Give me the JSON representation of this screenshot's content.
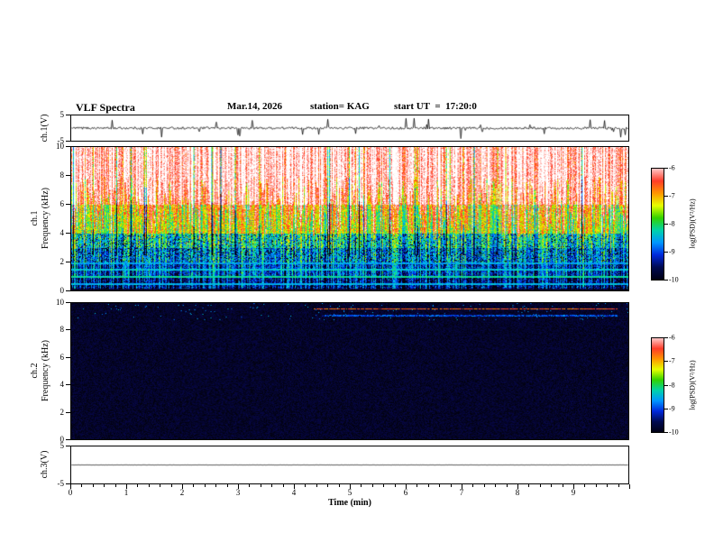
{
  "header": {
    "title": "VLF Spectra",
    "date": "Mar.14, 2026",
    "station": "station= KAG",
    "start_ut": "start UT  =  17:20:0"
  },
  "xaxis": {
    "label": "Time (min)",
    "lim": [
      0,
      10
    ],
    "ticks": [
      0,
      1,
      2,
      3,
      4,
      5,
      6,
      7,
      8,
      9
    ],
    "minor_step": 0.2
  },
  "colorbar": {
    "label": "log(PSD)(V²/Hz)",
    "ticks": [
      -6,
      -7,
      -8,
      -9,
      -10
    ],
    "lim": [
      -6,
      -10
    ],
    "colors_top_to_bottom": [
      "#ffc8c8",
      "#ff3c28",
      "#ff9600",
      "#e6ff00",
      "#32d200",
      "#00d2aa",
      "#0096ff",
      "#0028dc",
      "#000a50",
      "#000014"
    ]
  },
  "chart_data": [
    {
      "type": "line",
      "name": "ch1-waveform",
      "ylabel": "ch.1(V)",
      "ylim": [
        -5,
        5
      ],
      "yticks": [
        5,
        -5
      ],
      "xlim": [
        0,
        10
      ],
      "baseline_v": 0,
      "noise_amp_v": 0.45,
      "spike_count": 30,
      "spike_amp_v": 3,
      "description": "Noisy trace centered at 0 V with sporadic narrow spikes over the full 10 minutes"
    },
    {
      "type": "heatmap",
      "name": "ch1-spectrogram",
      "channel": "ch.1",
      "ylabel": "Frequency (kHz)",
      "ylim": [
        0,
        10
      ],
      "yticks": [
        10,
        8,
        6,
        4,
        2,
        0
      ],
      "xlim": [
        0,
        10
      ],
      "zlim": [
        -10,
        -6
      ],
      "bands": [
        {
          "f_min": 6,
          "f_max": 10,
          "level": -6.8
        },
        {
          "f_min": 4,
          "f_max": 6,
          "level": -7.6
        },
        {
          "f_min": 3,
          "f_max": 4,
          "level": -8.4
        },
        {
          "f_min": 2,
          "f_max": 3,
          "level": -8.9
        },
        {
          "f_min": 1,
          "f_max": 2,
          "level": -9.3
        },
        {
          "f_min": 0,
          "f_max": 1,
          "level": -9.7
        }
      ],
      "lines": [
        {
          "f": 0.5,
          "level": -8.6
        },
        {
          "f": 0.95,
          "level": -8.2
        },
        {
          "f": 1.5,
          "level": -8.5
        },
        {
          "f": 1.9,
          "level": -8.7
        }
      ],
      "description": "Dense broadband impulsive sferic activity: red/white vertical needles above ~4 kHz, green-yellow mid band, blue/black below ~3 kHz with narrow cyan horizontal lines under 2 kHz"
    },
    {
      "type": "heatmap",
      "name": "ch2-spectrogram",
      "channel": "ch.2",
      "ylabel": "Frequency (kHz)",
      "ylim": [
        0,
        10
      ],
      "yticks": [
        10,
        8,
        6,
        4,
        2,
        0
      ],
      "xlim": [
        0,
        10
      ],
      "zlim": [
        -10,
        -6
      ],
      "background_level": -10,
      "features": [
        {
          "f_khz": 9.6,
          "x_start_min": 4.3,
          "x_end_min": 9.8,
          "level": -6.5
        },
        {
          "f_khz": 9.1,
          "x_start_min": 4.5,
          "x_end_min": 9.8,
          "level": -9.1
        }
      ],
      "description": "Nearly uniform noise floor at the bottom of the color scale (black) with faint narrowband traces near 9-10 kHz after ~4 min"
    },
    {
      "type": "line",
      "name": "ch3-waveform",
      "ylabel": "ch.3(V)",
      "ylim": [
        -5,
        5
      ],
      "yticks": [
        5,
        -5
      ],
      "xlim": [
        0,
        10
      ],
      "baseline_v": 0,
      "noise_amp_v": 0.03,
      "spike_count": 0,
      "spike_amp_v": 0,
      "description": "Flat line at 0 V"
    }
  ]
}
